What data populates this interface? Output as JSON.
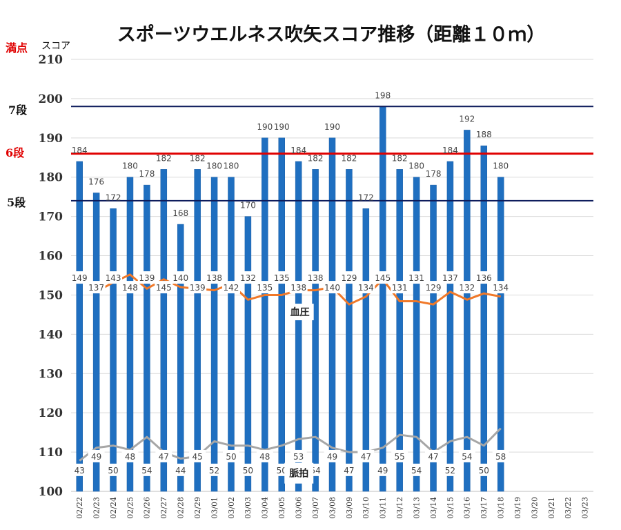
{
  "title": "スポーツウエルネス吹矢スコア推移（距離１０ｍ）",
  "y_label": "スコア",
  "perfect_label": "満点",
  "level_labels": {
    "dan7": "7段",
    "dan6": "6段",
    "dan5": "5段"
  },
  "colors": {
    "bar": "#1f6fc0",
    "bar_edge": "#1b5fa6",
    "blood_pressure": "#f07828",
    "pulse": "#a6a6a6",
    "dan_line": "#0d1c5c",
    "dan6_line": "#e00000",
    "perfect_label": "#e00000",
    "grid": "#d9d9d9"
  },
  "chart_data": {
    "type": "bar",
    "title": "スポーツウエルネス吹矢スコア推移（距離１０ｍ）",
    "ylabel": "スコア",
    "ylim": [
      100,
      210
    ],
    "yticks": [
      100,
      110,
      120,
      130,
      140,
      150,
      160,
      170,
      180,
      190,
      200,
      210
    ],
    "grid": true,
    "categories": [
      "02/22",
      "02/23",
      "02/24",
      "02/25",
      "02/26",
      "02/27",
      "02/28",
      "02/29",
      "03/01",
      "03/02",
      "03/03",
      "03/04",
      "03/05",
      "03/06",
      "03/07",
      "03/08",
      "03/09",
      "03/10",
      "03/11",
      "03/12",
      "03/13",
      "03/14",
      "03/15",
      "03/16",
      "03/17",
      "03/18",
      "03/19",
      "03/20",
      "03/21",
      "03/22",
      "03/23"
    ],
    "series": [
      {
        "type": "bar",
        "values": [
          184,
          176,
          172,
          180,
          178,
          182,
          168,
          182,
          180,
          180,
          170,
          190,
          190,
          184,
          182,
          190,
          182,
          172,
          198,
          182,
          180,
          178,
          184,
          192,
          188,
          180,
          null,
          null,
          null,
          null,
          null
        ]
      },
      {
        "name": "血圧",
        "type": "line",
        "values": [
          149,
          137,
          143,
          148,
          139,
          145,
          140,
          139,
          138,
          142,
          132,
          135,
          135,
          138,
          138,
          140,
          129,
          134,
          145,
          131,
          131,
          129,
          137,
          132,
          136,
          134,
          null,
          null,
          null,
          null,
          null
        ]
      },
      {
        "name": "脈拍",
        "type": "line",
        "values": [
          43,
          49,
          50,
          48,
          54,
          47,
          44,
          45,
          52,
          50,
          50,
          48,
          50,
          53,
          54,
          49,
          47,
          47,
          49,
          55,
          54,
          47,
          52,
          54,
          50,
          58,
          null,
          null,
          null,
          null,
          null
        ]
      }
    ],
    "reference_lines": [
      {
        "label": "7段",
        "value": 198
      },
      {
        "label": "6段",
        "value": 186
      },
      {
        "label": "5段",
        "value": 174
      }
    ]
  }
}
